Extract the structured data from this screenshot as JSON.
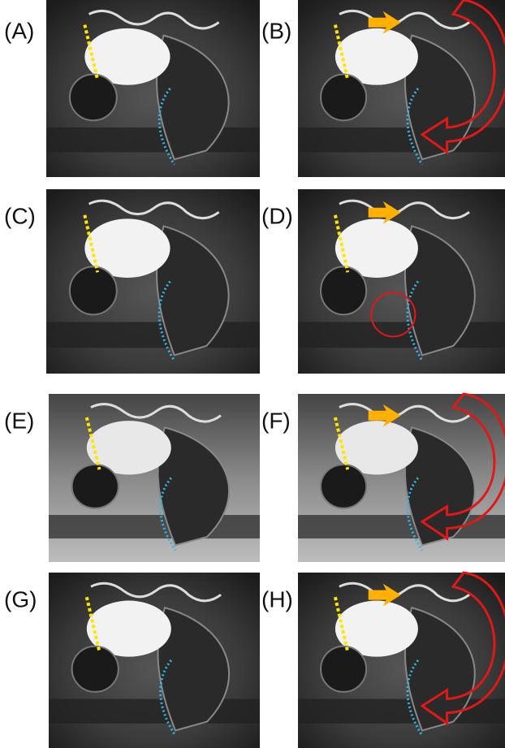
{
  "panels": [
    {
      "label": "(A)"
    },
    {
      "label": "(B)"
    },
    {
      "label": "(C)"
    },
    {
      "label": "(D)"
    },
    {
      "label": "(E)"
    },
    {
      "label": "(F)"
    },
    {
      "label": "(G)"
    },
    {
      "label": "(H)"
    }
  ]
}
